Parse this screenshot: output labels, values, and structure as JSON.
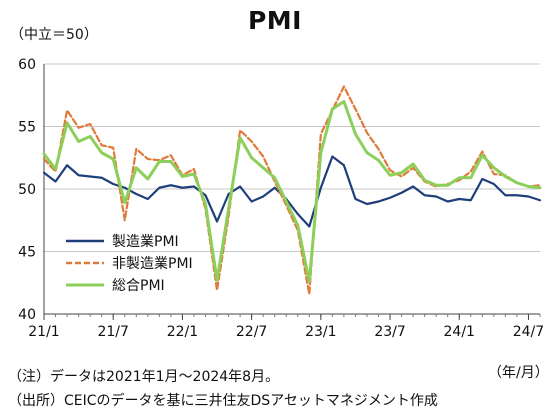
{
  "header": {
    "title": "PMI",
    "unit_label": "（中立＝50）",
    "period_label": "（年/月）"
  },
  "notes": {
    "note": "（注）データは2021年1月～2024年8月。",
    "source": "（出所）CEICのデータを基に三井住友DSアセットマネジメント作成"
  },
  "chart_data": {
    "type": "line",
    "title": "PMI",
    "x": [
      "21/1",
      "21/2",
      "21/3",
      "21/4",
      "21/5",
      "21/6",
      "21/7",
      "21/8",
      "21/9",
      "21/10",
      "21/11",
      "21/12",
      "22/1",
      "22/2",
      "22/3",
      "22/4",
      "22/5",
      "22/6",
      "22/7",
      "22/8",
      "22/9",
      "22/10",
      "22/11",
      "22/12",
      "23/1",
      "23/2",
      "23/3",
      "23/4",
      "23/5",
      "23/6",
      "23/7",
      "23/8",
      "23/9",
      "23/10",
      "23/11",
      "23/12",
      "24/1",
      "24/2",
      "24/3",
      "24/4",
      "24/5",
      "24/6",
      "24/7",
      "24/8"
    ],
    "x_tick_labels": [
      "21/1",
      "21/7",
      "22/1",
      "22/7",
      "23/1",
      "23/7",
      "24/1",
      "24/7"
    ],
    "x_tick_indices": [
      0,
      6,
      12,
      18,
      24,
      30,
      36,
      42
    ],
    "ylim": [
      40,
      60
    ],
    "y_ticks": [
      40,
      45,
      50,
      55,
      60
    ],
    "grid": "horizontal",
    "legend_position": "left",
    "series": [
      {
        "name": "製造業PMI",
        "color": "#1f3f7a",
        "dash": "solid",
        "values": [
          51.3,
          50.6,
          51.9,
          51.1,
          51.0,
          50.9,
          50.4,
          50.1,
          49.6,
          49.2,
          50.1,
          50.3,
          50.1,
          50.2,
          49.5,
          47.4,
          49.6,
          50.2,
          49.0,
          49.4,
          50.1,
          49.2,
          48.0,
          47.0,
          50.1,
          52.6,
          51.9,
          49.2,
          48.8,
          49.0,
          49.3,
          49.7,
          50.2,
          49.5,
          49.4,
          49.0,
          49.2,
          49.1,
          50.8,
          50.4,
          49.5,
          49.5,
          49.4,
          49.1
        ]
      },
      {
        "name": "非製造業PMI",
        "color": "#e07a3a",
        "dash": "dashed",
        "values": [
          52.4,
          51.4,
          56.3,
          54.9,
          55.2,
          53.5,
          53.3,
          47.5,
          53.2,
          52.4,
          52.3,
          52.7,
          51.1,
          51.6,
          48.4,
          41.9,
          47.8,
          54.7,
          53.8,
          52.6,
          50.6,
          48.7,
          46.7,
          41.6,
          54.4,
          56.3,
          58.2,
          56.4,
          54.5,
          53.2,
          51.5,
          51.0,
          51.7,
          50.6,
          50.2,
          50.4,
          50.7,
          51.4,
          53.0,
          51.2,
          51.1,
          50.5,
          50.2,
          50.3
        ]
      },
      {
        "name": "総合PMI",
        "color": "#8ccf5a",
        "dash": "solid",
        "values": [
          52.8,
          51.6,
          55.3,
          53.8,
          54.2,
          52.9,
          52.4,
          48.9,
          51.7,
          50.8,
          52.2,
          52.2,
          51.0,
          51.2,
          48.8,
          42.7,
          48.4,
          54.1,
          52.5,
          51.7,
          50.9,
          49.0,
          47.1,
          42.6,
          52.9,
          56.4,
          57.0,
          54.4,
          52.9,
          52.3,
          51.1,
          51.3,
          52.0,
          50.7,
          50.3,
          50.3,
          50.9,
          50.9,
          52.7,
          51.7,
          51.0,
          50.5,
          50.2,
          50.1
        ]
      }
    ]
  }
}
